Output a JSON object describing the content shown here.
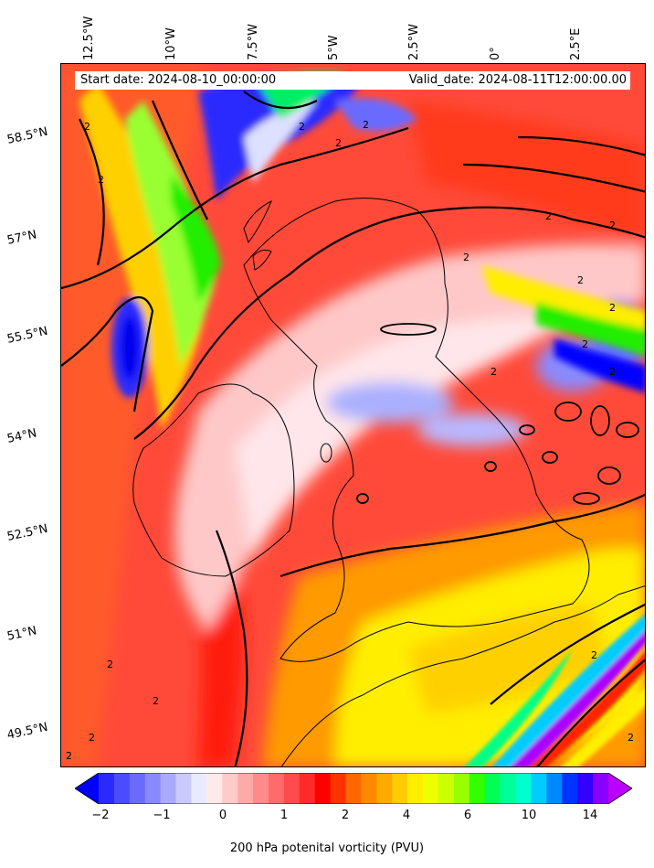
{
  "header": {
    "start_date": "Start date: 2024-08-10_00:00:00",
    "valid_date": "Valid_date: 2024-08-11T12:00:00.00"
  },
  "axes": {
    "longitude_labels": [
      "12.5°W",
      "10°W",
      "7.5°W",
      "5°W",
      "2.5°W",
      "0°",
      "2.5°E"
    ],
    "latitude_labels": [
      "58.5°N",
      "57°N",
      "55.5°N",
      "54°N",
      "52.5°N",
      "51°N",
      "49.5°N"
    ]
  },
  "colorbar": {
    "title": "200 hPa potenital vorticity (PVU)",
    "tick_labels": [
      "−2",
      "−1",
      "0",
      "1",
      "2",
      "4",
      "6",
      "10",
      "14"
    ],
    "colors": [
      "#0000ff",
      "#2a2aff",
      "#4b4bff",
      "#6a6aff",
      "#8a8aff",
      "#aaaaff",
      "#cacaff",
      "#eaeaff",
      "#ffeaea",
      "#ffcaca",
      "#ffaaaa",
      "#ff8a8a",
      "#ff6a6a",
      "#ff4b4b",
      "#ff2a2a",
      "#ff0000",
      "#ff3300",
      "#ff6600",
      "#ff8800",
      "#ffaa00",
      "#ffcc00",
      "#ffee00",
      "#eeff00",
      "#ccff00",
      "#99ff00",
      "#33ff00",
      "#00ff55",
      "#00ff99",
      "#00ffcc",
      "#00ccff",
      "#0088ff",
      "#0033ff",
      "#3300ff",
      "#8800ff",
      "#bb00ff"
    ],
    "contour_label": "2"
  }
}
